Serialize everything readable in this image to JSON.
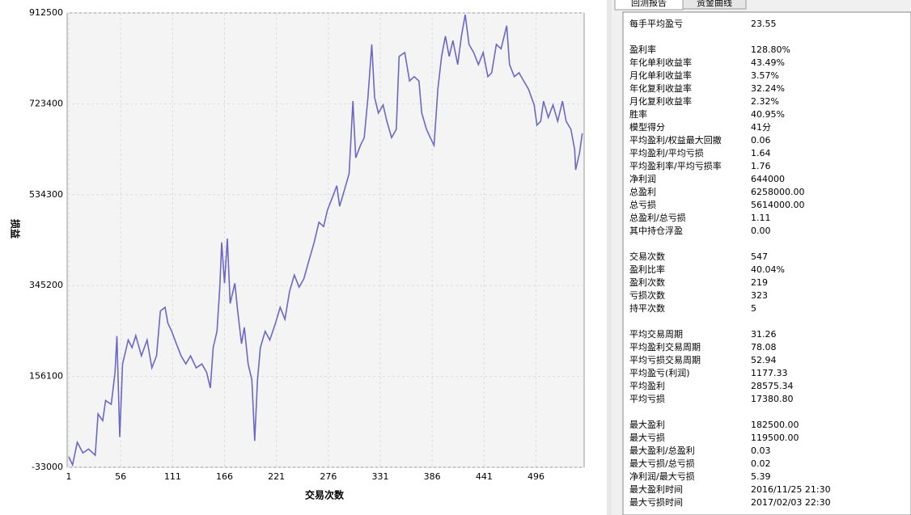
{
  "chart_data": {
    "type": "line",
    "x_label": "交易次数",
    "y_label": "损益",
    "x": [
      1,
      5,
      10,
      16,
      22,
      29,
      32,
      37,
      40,
      46,
      50,
      52,
      55,
      58,
      64,
      68,
      72,
      78,
      84,
      89,
      94,
      98,
      103,
      106,
      110,
      115,
      120,
      125,
      130,
      136,
      142,
      147,
      151,
      154,
      158,
      161,
      163,
      166,
      169,
      172,
      177,
      180,
      184,
      187,
      191,
      195,
      198,
      201,
      204,
      209,
      214,
      220,
      225,
      230,
      235,
      240,
      245,
      250,
      256,
      261,
      266,
      271,
      275,
      280,
      285,
      288,
      293,
      298,
      302,
      305,
      310,
      314,
      318,
      322,
      325,
      329,
      334,
      338,
      343,
      348,
      351,
      357,
      362,
      367,
      372,
      375,
      380,
      384,
      388,
      392,
      396,
      400,
      404,
      408,
      413,
      417,
      421,
      425,
      430,
      435,
      440,
      445,
      449,
      454,
      459,
      465,
      468,
      473,
      478,
      483,
      488,
      494,
      497,
      501,
      504,
      509,
      514,
      519,
      524,
      528,
      533,
      537,
      538,
      542,
      545
    ],
    "series": [
      {
        "name": "资金曲线",
        "color": "#6b67c9",
        "values": [
          -11000,
          -28000,
          19000,
          -3000,
          5000,
          -8000,
          78000,
          64000,
          106000,
          98000,
          165000,
          240000,
          30000,
          182000,
          232000,
          216000,
          241000,
          199000,
          232000,
          174000,
          199000,
          292000,
          300000,
          267000,
          250000,
          224000,
          199000,
          182000,
          199000,
          174000,
          182000,
          165000,
          132000,
          216000,
          250000,
          342000,
          435000,
          350000,
          443000,
          308000,
          350000,
          292000,
          224000,
          258000,
          182000,
          149000,
          22000,
          149000,
          216000,
          250000,
          232000,
          267000,
          300000,
          275000,
          334000,
          367000,
          342000,
          359000,
          401000,
          435000,
          477000,
          468000,
          502000,
          527000,
          553000,
          510000,
          544000,
          578000,
          729000,
          611000,
          637000,
          653000,
          737000,
          847000,
          737000,
          704000,
          721000,
          687000,
          653000,
          670000,
          822000,
          830000,
          771000,
          780000,
          771000,
          704000,
          670000,
          653000,
          637000,
          754000,
          822000,
          864000,
          822000,
          855000,
          805000,
          864000,
          909000,
          847000,
          830000,
          805000,
          830000,
          780000,
          788000,
          847000,
          838000,
          886000,
          805000,
          780000,
          788000,
          771000,
          754000,
          721000,
          679000,
          687000,
          729000,
          695000,
          721000,
          687000,
          729000,
          687000,
          670000,
          628000,
          586000,
          620000,
          662000
        ]
      }
    ],
    "xlim": [
      1,
      547
    ],
    "ylim": [
      -33000,
      912500
    ],
    "xticks": [
      1,
      56,
      111,
      166,
      221,
      276,
      331,
      386,
      441,
      496
    ],
    "yticks": [
      -33000,
      156100,
      345200,
      534300,
      723400,
      912500
    ],
    "grid": true
  },
  "tabs": [
    "回测报告",
    "资金曲线"
  ],
  "stats": [
    [
      {
        "label": "每手平均盈亏",
        "value": "23.55"
      }
    ],
    [
      {
        "label": "盈利率",
        "value": "128.80%"
      },
      {
        "label": "年化单利收益率",
        "value": "43.49%"
      },
      {
        "label": "月化单利收益率",
        "value": "3.57%"
      },
      {
        "label": "年化复利收益率",
        "value": "32.24%"
      },
      {
        "label": "月化复利收益率",
        "value": "2.32%"
      },
      {
        "label": "胜率",
        "value": "40.95%"
      },
      {
        "label": "模型得分",
        "value": "41分"
      },
      {
        "label": "平均盈利/权益最大回撤",
        "value": "0.06"
      },
      {
        "label": "平均盈利/平均亏损",
        "value": "1.64"
      },
      {
        "label": "平均盈利率/平均亏损率",
        "value": "1.76"
      },
      {
        "label": "净利润",
        "value": "644000"
      },
      {
        "label": "总盈利",
        "value": "6258000.00"
      },
      {
        "label": "总亏损",
        "value": "5614000.00"
      },
      {
        "label": "总盈利/总亏损",
        "value": "1.11"
      },
      {
        "label": "其中持仓浮盈",
        "value": "0.00"
      }
    ],
    [
      {
        "label": "交易次数",
        "value": "547"
      },
      {
        "label": "盈利比率",
        "value": "40.04%"
      },
      {
        "label": "盈利次数",
        "value": "219"
      },
      {
        "label": "亏损次数",
        "value": "323"
      },
      {
        "label": "持平次数",
        "value": "5"
      }
    ],
    [
      {
        "label": "平均交易周期",
        "value": "31.26"
      },
      {
        "label": "平均盈利交易周期",
        "value": "78.08"
      },
      {
        "label": "平均亏损交易周期",
        "value": "52.94"
      },
      {
        "label": "平均盈亏(利润)",
        "value": "1177.33"
      },
      {
        "label": "平均盈利",
        "value": "28575.34"
      },
      {
        "label": "平均亏损",
        "value": "17380.80"
      }
    ],
    [
      {
        "label": "最大盈利",
        "value": "182500.00"
      },
      {
        "label": "最大亏损",
        "value": "119500.00"
      },
      {
        "label": "最大盈利/总盈利",
        "value": "0.03"
      },
      {
        "label": "最大亏损/总亏损",
        "value": "0.02"
      },
      {
        "label": "净利润/最大亏损",
        "value": "5.39"
      },
      {
        "label": "最大盈利时间",
        "value": "2016/11/25 21:30"
      },
      {
        "label": "最大亏损时间",
        "value": "2017/02/03 22:30"
      }
    ]
  ]
}
